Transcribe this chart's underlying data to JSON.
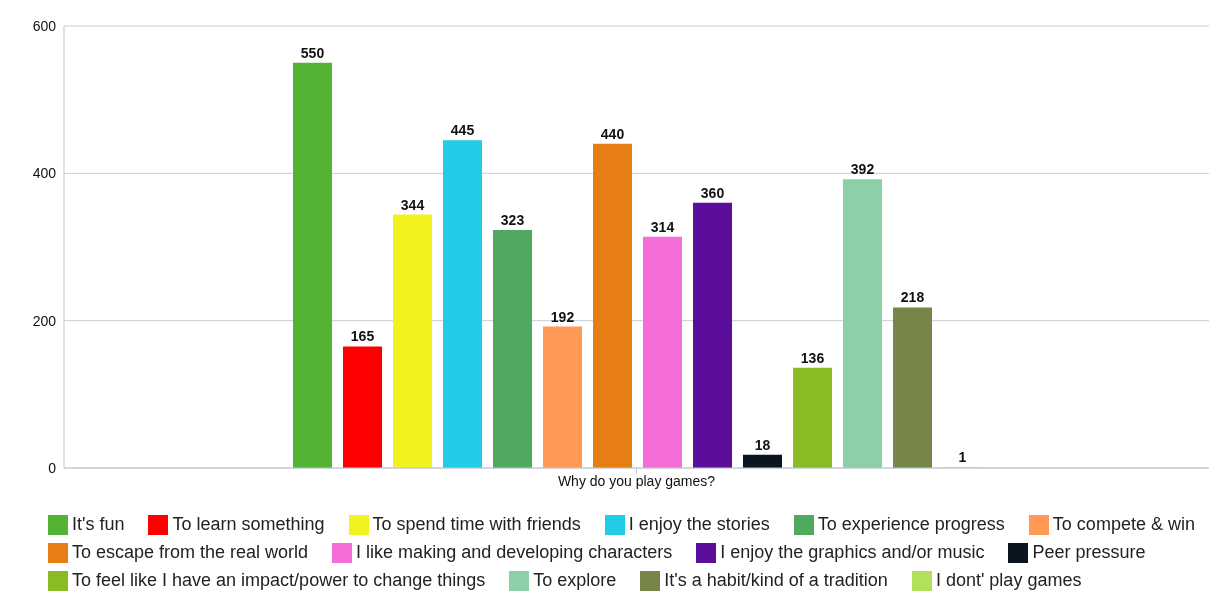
{
  "chart_data": {
    "type": "bar",
    "categories": [
      "Why do you play games?"
    ],
    "series": [
      {
        "name": "It's fun",
        "color": "#52b334",
        "values": [
          550
        ]
      },
      {
        "name": "To learn something",
        "color": "#ff0000",
        "values": [
          165
        ]
      },
      {
        "name": "To spend time with friends",
        "color": "#f2f21e",
        "values": [
          344
        ]
      },
      {
        "name": "I enjoy the stories",
        "color": "#22cce6",
        "values": [
          445
        ]
      },
      {
        "name": "To experience progress",
        "color": "#4fa95f",
        "values": [
          323
        ]
      },
      {
        "name": "To compete & win",
        "color": "#ff9955",
        "values": [
          192
        ]
      },
      {
        "name": "To escape from the real world",
        "color": "#e67e14",
        "values": [
          440
        ]
      },
      {
        "name": "I like making and developing characters",
        "color": "#f56ed8",
        "values": [
          314
        ]
      },
      {
        "name": "I enjoy the graphics and/or music",
        "color": "#5b0d9c",
        "values": [
          360
        ]
      },
      {
        "name": "Peer pressure",
        "color": "#0a1520",
        "values": [
          18
        ]
      },
      {
        "name": "To feel like I have an impact/power to change things",
        "color": "#8bbb24",
        "values": [
          136
        ]
      },
      {
        "name": "To explore",
        "color": "#8dd0a8",
        "values": [
          392
        ]
      },
      {
        "name": "It's a habit/kind of a tradition",
        "color": "#76864a",
        "values": [
          218
        ]
      },
      {
        "name": "I dont' play games",
        "color": "#b3e05a",
        "values": [
          1
        ]
      }
    ],
    "ylim": [
      0,
      600
    ],
    "yticks": [
      0,
      200,
      400,
      600
    ],
    "grid": "y",
    "legend": "bottom",
    "data_labels": true
  }
}
